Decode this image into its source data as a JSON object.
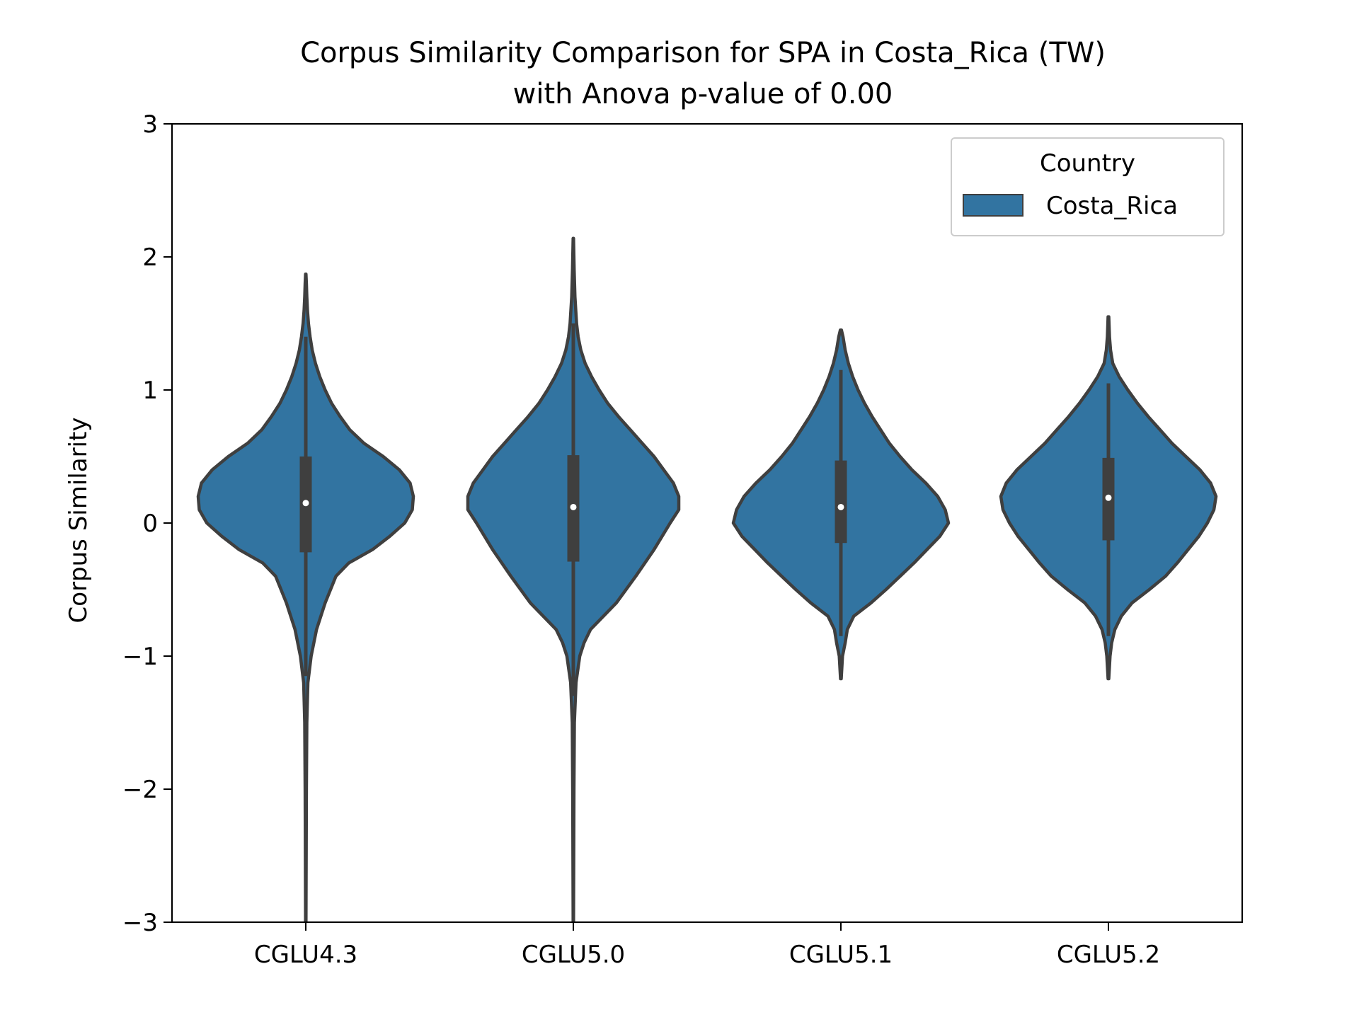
{
  "chart_data": {
    "type": "violin",
    "title": [
      "Corpus Similarity Comparison for SPA in Costa_Rica (TW)",
      "with Anova p-value of 0.00"
    ],
    "xlabel": "",
    "ylabel": "Corpus Similarity",
    "ylim": [
      -3,
      3
    ],
    "yticks": [
      -3,
      -2,
      -1,
      0,
      1,
      2,
      3
    ],
    "ytick_labels": [
      "−3",
      "−2",
      "−1",
      "0",
      "1",
      "2",
      "3"
    ],
    "categories": [
      "CGLU4.3",
      "CGLU5.0",
      "CGLU5.1",
      "CGLU5.2"
    ],
    "grid": false,
    "legend": {
      "title": "Country",
      "placement": "top-right",
      "entries": [
        {
          "name": "Costa_Rica",
          "color": "#3274a1"
        }
      ]
    },
    "colors": {
      "fill": "#3274a1",
      "edge": "#3f3f3f",
      "median": "#ffffff"
    },
    "series": [
      {
        "name": "Costa_Rica",
        "violins": [
          {
            "category": "CGLU4.3",
            "median": 0.15,
            "q1": -0.22,
            "q3": 0.5,
            "whisker_low": -1.15,
            "whisker_high": 1.4,
            "profile": [
              [
                -3.0,
                0.002
              ],
              [
                -2.5,
                0.004
              ],
              [
                -2.0,
                0.006
              ],
              [
                -1.5,
                0.01
              ],
              [
                -1.2,
                0.02
              ],
              [
                -1.0,
                0.05
              ],
              [
                -0.8,
                0.1
              ],
              [
                -0.6,
                0.18
              ],
              [
                -0.4,
                0.28
              ],
              [
                -0.3,
                0.4
              ],
              [
                -0.2,
                0.62
              ],
              [
                -0.1,
                0.78
              ],
              [
                0.0,
                0.92
              ],
              [
                0.1,
                0.99
              ],
              [
                0.2,
                1.0
              ],
              [
                0.3,
                0.97
              ],
              [
                0.4,
                0.87
              ],
              [
                0.5,
                0.72
              ],
              [
                0.6,
                0.54
              ],
              [
                0.7,
                0.41
              ],
              [
                0.8,
                0.32
              ],
              [
                0.9,
                0.24
              ],
              [
                1.0,
                0.18
              ],
              [
                1.1,
                0.13
              ],
              [
                1.2,
                0.09
              ],
              [
                1.3,
                0.06
              ],
              [
                1.4,
                0.04
              ],
              [
                1.5,
                0.025
              ],
              [
                1.6,
                0.016
              ],
              [
                1.7,
                0.01
              ],
              [
                1.8,
                0.006
              ],
              [
                1.87,
                0.002
              ]
            ]
          },
          {
            "category": "CGLU5.0",
            "median": 0.12,
            "q1": -0.29,
            "q3": 0.51,
            "whisker_low": -1.3,
            "whisker_high": 1.5,
            "profile": [
              [
                -3.0,
                0.002
              ],
              [
                -2.5,
                0.004
              ],
              [
                -2.0,
                0.006
              ],
              [
                -1.5,
                0.01
              ],
              [
                -1.2,
                0.025
              ],
              [
                -1.0,
                0.06
              ],
              [
                -0.9,
                0.1
              ],
              [
                -0.8,
                0.16
              ],
              [
                -0.7,
                0.28
              ],
              [
                -0.6,
                0.4
              ],
              [
                -0.4,
                0.58
              ],
              [
                -0.2,
                0.75
              ],
              [
                0.0,
                0.9
              ],
              [
                0.1,
                0.98
              ],
              [
                0.2,
                0.98
              ],
              [
                0.3,
                0.93
              ],
              [
                0.4,
                0.84
              ],
              [
                0.5,
                0.75
              ],
              [
                0.6,
                0.64
              ],
              [
                0.7,
                0.53
              ],
              [
                0.8,
                0.42
              ],
              [
                0.9,
                0.32
              ],
              [
                1.0,
                0.24
              ],
              [
                1.1,
                0.17
              ],
              [
                1.2,
                0.11
              ],
              [
                1.3,
                0.07
              ],
              [
                1.4,
                0.045
              ],
              [
                1.5,
                0.03
              ],
              [
                1.7,
                0.015
              ],
              [
                1.9,
                0.008
              ],
              [
                2.14,
                0.002
              ]
            ]
          },
          {
            "category": "CGLU5.1",
            "median": 0.12,
            "q1": -0.15,
            "q3": 0.47,
            "whisker_low": -0.85,
            "whisker_high": 1.15,
            "profile": [
              [
                -1.17,
                0.003
              ],
              [
                -1.0,
                0.015
              ],
              [
                -0.9,
                0.04
              ],
              [
                -0.8,
                0.06
              ],
              [
                -0.7,
                0.12
              ],
              [
                -0.6,
                0.28
              ],
              [
                -0.5,
                0.42
              ],
              [
                -0.4,
                0.55
              ],
              [
                -0.3,
                0.68
              ],
              [
                -0.2,
                0.8
              ],
              [
                -0.1,
                0.92
              ],
              [
                0.0,
                1.0
              ],
              [
                0.1,
                0.97
              ],
              [
                0.2,
                0.9
              ],
              [
                0.3,
                0.79
              ],
              [
                0.4,
                0.66
              ],
              [
                0.5,
                0.55
              ],
              [
                0.6,
                0.45
              ],
              [
                0.7,
                0.37
              ],
              [
                0.8,
                0.29
              ],
              [
                0.9,
                0.22
              ],
              [
                1.0,
                0.16
              ],
              [
                1.1,
                0.11
              ],
              [
                1.2,
                0.07
              ],
              [
                1.3,
                0.04
              ],
              [
                1.4,
                0.02
              ],
              [
                1.45,
                0.005
              ]
            ]
          },
          {
            "category": "CGLU5.2",
            "median": 0.19,
            "q1": -0.13,
            "q3": 0.49,
            "whisker_low": -0.85,
            "whisker_high": 1.05,
            "profile": [
              [
                -1.17,
                0.003
              ],
              [
                -1.0,
                0.015
              ],
              [
                -0.9,
                0.03
              ],
              [
                -0.8,
                0.06
              ],
              [
                -0.7,
                0.12
              ],
              [
                -0.6,
                0.22
              ],
              [
                -0.5,
                0.38
              ],
              [
                -0.4,
                0.53
              ],
              [
                -0.3,
                0.64
              ],
              [
                -0.2,
                0.74
              ],
              [
                -0.1,
                0.84
              ],
              [
                0.0,
                0.92
              ],
              [
                0.1,
                0.98
              ],
              [
                0.2,
                1.0
              ],
              [
                0.3,
                0.95
              ],
              [
                0.4,
                0.85
              ],
              [
                0.5,
                0.72
              ],
              [
                0.6,
                0.59
              ],
              [
                0.7,
                0.48
              ],
              [
                0.8,
                0.37
              ],
              [
                0.9,
                0.27
              ],
              [
                1.0,
                0.18
              ],
              [
                1.1,
                0.1
              ],
              [
                1.2,
                0.04
              ],
              [
                1.3,
                0.02
              ],
              [
                1.4,
                0.01
              ],
              [
                1.55,
                0.003
              ]
            ]
          }
        ]
      }
    ]
  }
}
